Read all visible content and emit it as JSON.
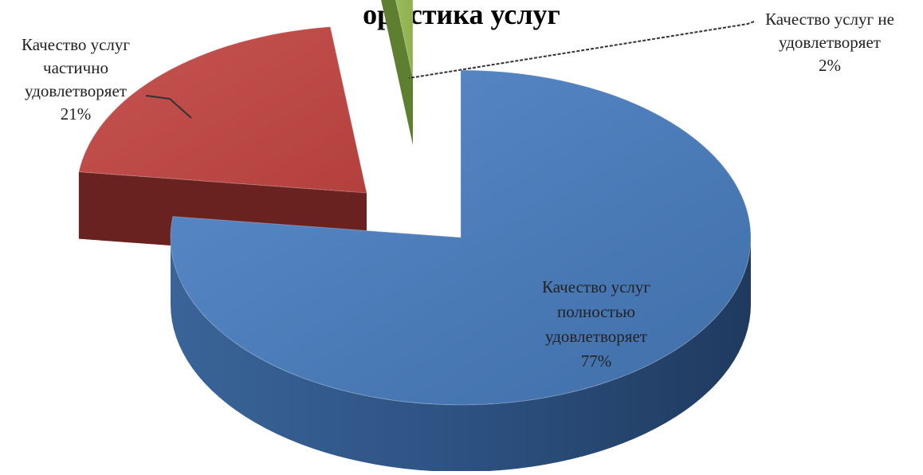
{
  "title": "ористика услуг",
  "chart_data": {
    "type": "pie",
    "title": "ористика услуг",
    "three_d": true,
    "exploded": true,
    "slices": [
      {
        "label": "Качество услуг полностью удовлетворяет",
        "label_lines": [
          "Качество услуг",
          "полностью",
          "удовлетворяет"
        ],
        "value": 77,
        "value_label": "77%",
        "color": "#4f81bd"
      },
      {
        "label": "Качество услуг частично удовлетворяет",
        "label_lines": [
          "Качество услуг",
          "частично",
          "удовлетворяет"
        ],
        "value": 21,
        "value_label": "21%",
        "color": "#c0504d"
      },
      {
        "label": "Качество услуг не удовлетворяет",
        "label_lines": [
          "Качество услуг не",
          "удовлетворяет"
        ],
        "value": 2,
        "value_label": "2%",
        "color": "#9bbb59"
      }
    ]
  }
}
